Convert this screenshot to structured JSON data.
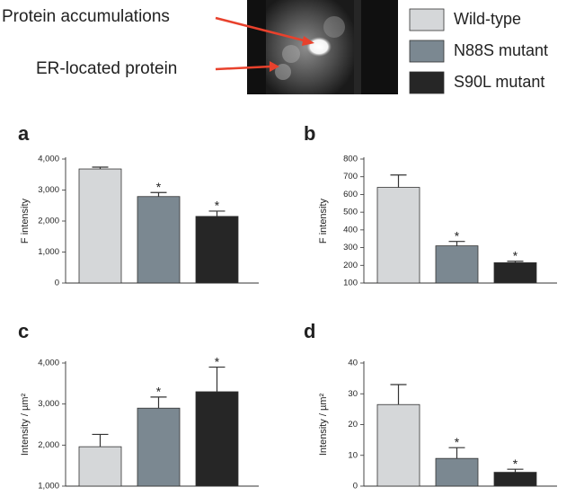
{
  "figure": {
    "annotations": [
      "Protein accumulations",
      "ER-located protein"
    ]
  },
  "chart_data": [
    {
      "type": "bar",
      "panel": "a",
      "ylabel": "F intensity",
      "categories": [
        null
      ],
      "ylim": [
        0,
        4000
      ],
      "yticks": [
        0,
        {
          "value": 1000,
          "label": "1,000"
        },
        {
          "value": 2000,
          "label": "2,000"
        },
        {
          "value": 3000,
          "label": "3,000"
        },
        {
          "value": 4000,
          "label": "4,000"
        }
      ],
      "series": [
        {
          "name": "Wild-type",
          "color": "#d5d7d9",
          "values": [
            3680
          ],
          "errors": [
            60
          ]
        },
        {
          "name": "N88S mutant",
          "color": "#7b8891",
          "values": [
            2790
          ],
          "errors": [
            130
          ],
          "annotation": "*"
        },
        {
          "name": "S90L mutant",
          "color": "#262626",
          "values": [
            2150
          ],
          "errors": [
            170
          ],
          "annotation": "*"
        }
      ]
    },
    {
      "type": "bar",
      "panel": "b",
      "ylabel": "F intensity",
      "categories": [
        null
      ],
      "ylim": [
        100,
        800
      ],
      "yticks": [
        100,
        200,
        300,
        400,
        500,
        600,
        700,
        800
      ],
      "series": [
        {
          "name": "Wild-type",
          "color": "#d5d7d9",
          "values": [
            640
          ],
          "errors": [
            70
          ]
        },
        {
          "name": "N88S mutant",
          "color": "#7b8891",
          "values": [
            310
          ],
          "errors": [
            25
          ],
          "annotation": "*"
        },
        {
          "name": "S90L mutant",
          "color": "#262626",
          "values": [
            215
          ],
          "errors": [
            8
          ],
          "annotation": "*"
        }
      ]
    },
    {
      "type": "bar",
      "panel": "c",
      "ylabel": "Intensity / µm²",
      "categories": [
        null
      ],
      "ylim": [
        1000,
        4000
      ],
      "yticks": [
        {
          "value": 1000,
          "label": "1,000"
        },
        {
          "value": 2000,
          "label": "2,000"
        },
        {
          "value": 3000,
          "label": "3,000"
        },
        {
          "value": 4000,
          "label": "4,000"
        }
      ],
      "series": [
        {
          "name": "Wild-type",
          "color": "#d5d7d9",
          "values": [
            1960
          ],
          "errors": [
            300
          ]
        },
        {
          "name": "N88S mutant",
          "color": "#7b8891",
          "values": [
            2900
          ],
          "errors": [
            270
          ],
          "annotation": "*"
        },
        {
          "name": "S90L mutant",
          "color": "#262626",
          "values": [
            3300
          ],
          "errors": [
            600
          ],
          "annotation": "*"
        }
      ]
    },
    {
      "type": "bar",
      "panel": "d",
      "ylabel": "Intensity / µm²",
      "categories": [
        null
      ],
      "ylim": [
        0,
        40
      ],
      "yticks": [
        0,
        10,
        20,
        30,
        40
      ],
      "series": [
        {
          "name": "Wild-type",
          "color": "#d5d7d9",
          "values": [
            26.5
          ],
          "errors": [
            6.5
          ]
        },
        {
          "name": "N88S mutant",
          "color": "#7b8891",
          "values": [
            9
          ],
          "errors": [
            3.5
          ],
          "annotation": "*"
        },
        {
          "name": "S90L mutant",
          "color": "#262626",
          "values": [
            4.5
          ],
          "errors": [
            1
          ],
          "annotation": "*"
        }
      ]
    }
  ]
}
